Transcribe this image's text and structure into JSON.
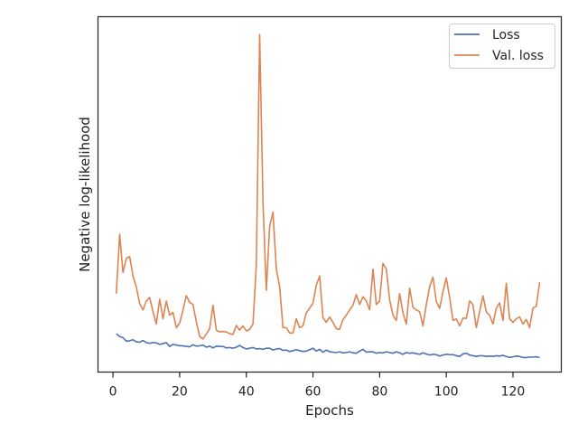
{
  "chart_data": {
    "type": "line",
    "title": "",
    "xlabel": "Epochs",
    "ylabel": "Negative log-likelihood",
    "xlim": [
      -4.5,
      134.5
    ],
    "ylim": [
      0.0,
      1.0
    ],
    "x_ticks": [
      0,
      20,
      40,
      60,
      80,
      100,
      120
    ],
    "y_ticks_labeled": false,
    "grid": false,
    "legend_position": "top-right",
    "series": [
      {
        "name": "Loss",
        "color": "#4c72b0",
        "x_start": 1,
        "values": [
          0.108,
          0.1,
          0.097,
          0.087,
          0.088,
          0.091,
          0.085,
          0.084,
          0.089,
          0.083,
          0.081,
          0.083,
          0.082,
          0.078,
          0.08,
          0.083,
          0.072,
          0.078,
          0.076,
          0.074,
          0.074,
          0.072,
          0.071,
          0.077,
          0.073,
          0.074,
          0.076,
          0.07,
          0.073,
          0.068,
          0.073,
          0.072,
          0.072,
          0.068,
          0.069,
          0.067,
          0.07,
          0.075,
          0.069,
          0.065,
          0.067,
          0.069,
          0.065,
          0.066,
          0.064,
          0.067,
          0.067,
          0.062,
          0.065,
          0.066,
          0.061,
          0.062,
          0.058,
          0.06,
          0.063,
          0.06,
          0.058,
          0.059,
          0.063,
          0.067,
          0.059,
          0.064,
          0.056,
          0.062,
          0.057,
          0.056,
          0.055,
          0.057,
          0.054,
          0.055,
          0.057,
          0.054,
          0.053,
          0.059,
          0.064,
          0.056,
          0.057,
          0.057,
          0.053,
          0.055,
          0.054,
          0.057,
          0.055,
          0.053,
          0.057,
          0.054,
          0.05,
          0.055,
          0.053,
          0.054,
          0.052,
          0.05,
          0.054,
          0.051,
          0.048,
          0.05,
          0.049,
          0.045,
          0.048,
          0.05,
          0.049,
          0.049,
          0.046,
          0.044,
          0.051,
          0.053,
          0.048,
          0.046,
          0.044,
          0.046,
          0.046,
          0.044,
          0.045,
          0.044,
          0.046,
          0.045,
          0.047,
          0.044,
          0.041,
          0.043,
          0.045,
          0.044,
          0.041,
          0.041,
          0.042,
          0.042,
          0.043,
          0.041
        ]
      },
      {
        "name": "Val. loss",
        "color": "#dd8452",
        "x_start": 1,
        "values": [
          0.221,
          0.388,
          0.28,
          0.32,
          0.325,
          0.27,
          0.24,
          0.193,
          0.175,
          0.2,
          0.21,
          0.17,
          0.135,
          0.205,
          0.15,
          0.2,
          0.16,
          0.168,
          0.125,
          0.138,
          0.174,
          0.215,
          0.196,
          0.19,
          0.142,
          0.1,
          0.093,
          0.107,
          0.122,
          0.188,
          0.118,
          0.113,
          0.114,
          0.113,
          0.108,
          0.106,
          0.131,
          0.118,
          0.13,
          0.116,
          0.12,
          0.135,
          0.3,
          0.95,
          0.48,
          0.23,
          0.41,
          0.45,
          0.29,
          0.24,
          0.125,
          0.125,
          0.11,
          0.11,
          0.15,
          0.125,
          0.13,
          0.167,
          0.18,
          0.194,
          0.245,
          0.27,
          0.153,
          0.14,
          0.155,
          0.14,
          0.122,
          0.12,
          0.148,
          0.16,
          0.175,
          0.188,
          0.218,
          0.19,
          0.212,
          0.2,
          0.175,
          0.29,
          0.19,
          0.2,
          0.306,
          0.29,
          0.203,
          0.16,
          0.145,
          0.221,
          0.167,
          0.135,
          0.236,
          0.182,
          0.175,
          0.17,
          0.13,
          0.19,
          0.24,
          0.267,
          0.199,
          0.179,
          0.226,
          0.265,
          0.21,
          0.145,
          0.15,
          0.13,
          0.152,
          0.151,
          0.2,
          0.19,
          0.125,
          0.17,
          0.215,
          0.169,
          0.16,
          0.135,
          0.18,
          0.195,
          0.145,
          0.25,
          0.15,
          0.14,
          0.15,
          0.155,
          0.135,
          0.148,
          0.125,
          0.18,
          0.185,
          0.253
        ]
      }
    ]
  }
}
